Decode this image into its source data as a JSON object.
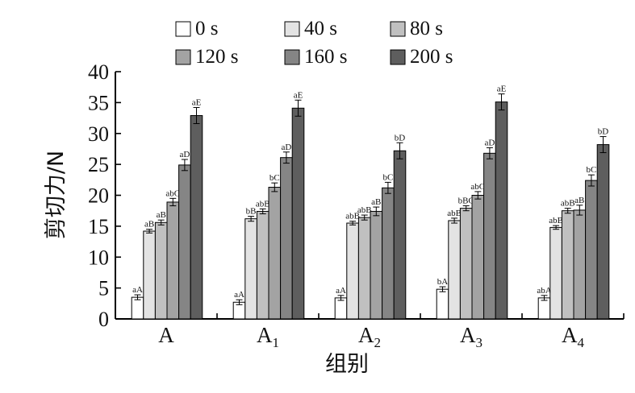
{
  "chart_data": {
    "type": "bar",
    "xlabel": "组别",
    "ylabel": "剪切力/N",
    "ylim": [
      0,
      40
    ],
    "yticks": [
      0,
      5,
      10,
      15,
      20,
      25,
      30,
      35,
      40
    ],
    "categories": [
      {
        "base": "A",
        "sub": ""
      },
      {
        "base": "A",
        "sub": "1"
      },
      {
        "base": "A",
        "sub": "2"
      },
      {
        "base": "A",
        "sub": "3"
      },
      {
        "base": "A",
        "sub": "4"
      }
    ],
    "series": [
      {
        "name": "0 s",
        "color": "#ffffff",
        "values": [
          3.5,
          2.7,
          3.4,
          4.8,
          3.4
        ],
        "errors": [
          0.4,
          0.4,
          0.4,
          0.4,
          0.4
        ],
        "labels": [
          "aA",
          "aA",
          "aA",
          "bA",
          "abA"
        ]
      },
      {
        "name": "40 s",
        "color": "#e3e3e3",
        "values": [
          14.2,
          16.2,
          15.5,
          15.9,
          14.8
        ],
        "errors": [
          0.3,
          0.4,
          0.3,
          0.4,
          0.3
        ],
        "labels": [
          "aB",
          "bB",
          "abB",
          "abB",
          "abB"
        ]
      },
      {
        "name": "80 s",
        "color": "#c0c0c0",
        "values": [
          15.6,
          17.4,
          16.4,
          17.9,
          17.5
        ],
        "errors": [
          0.4,
          0.4,
          0.4,
          0.4,
          0.4
        ],
        "labels": [
          "aB",
          "abB",
          "abB",
          "bBC",
          "abB"
        ]
      },
      {
        "name": "120 s",
        "color": "#a3a3a3",
        "values": [
          18.9,
          21.3,
          17.4,
          20.0,
          17.6
        ],
        "errors": [
          0.6,
          0.7,
          0.7,
          0.6,
          0.8
        ],
        "labels": [
          "abC",
          "bC",
          "aB",
          "abC",
          "aB"
        ]
      },
      {
        "name": "160 s",
        "color": "#858585",
        "values": [
          24.9,
          26.1,
          21.2,
          26.8,
          22.4
        ],
        "errors": [
          0.9,
          0.9,
          0.9,
          0.9,
          0.9
        ],
        "labels": [
          "aD",
          "aD",
          "bC",
          "aD",
          "bC"
        ]
      },
      {
        "name": "200 s",
        "color": "#5e5e5e",
        "values": [
          32.9,
          34.1,
          27.2,
          35.1,
          28.2
        ],
        "errors": [
          1.3,
          1.3,
          1.3,
          1.3,
          1.3
        ],
        "labels": [
          "aE",
          "aE",
          "bD",
          "aE",
          "bD"
        ]
      }
    ],
    "legend": "top-center",
    "grid": false
  }
}
